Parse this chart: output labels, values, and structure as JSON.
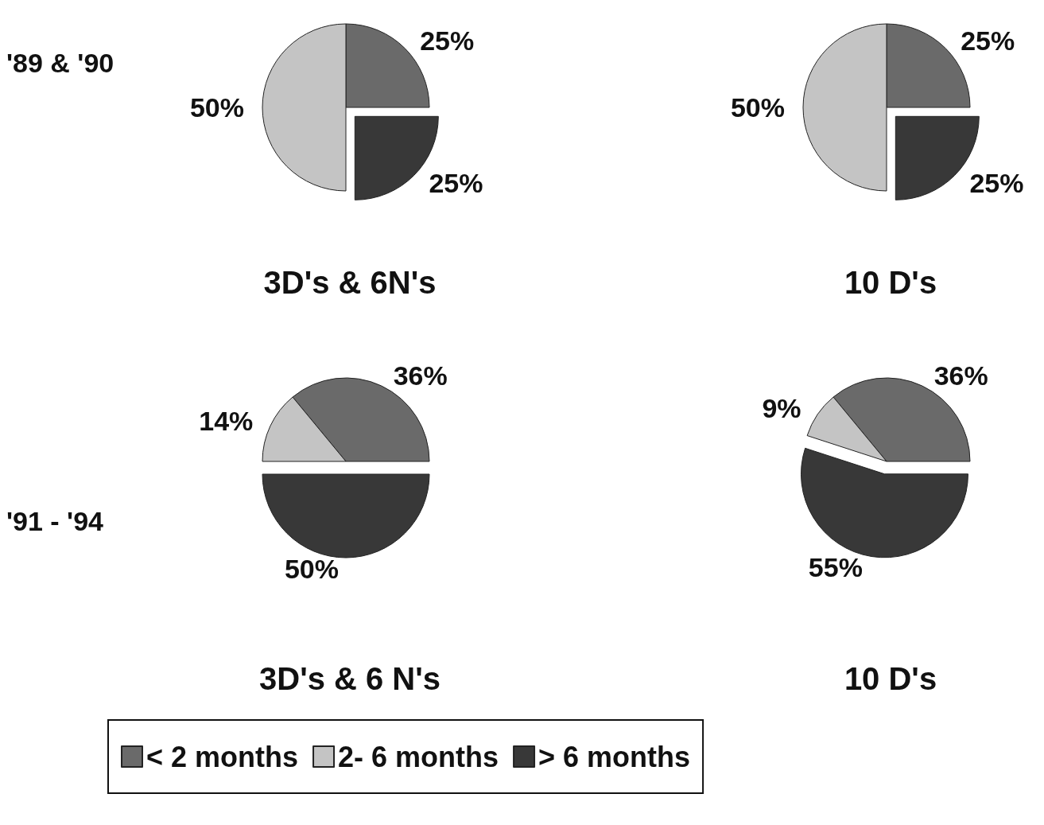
{
  "chart_data": [
    {
      "type": "pie",
      "title": "3D's & 6N's",
      "annotations": [
        "'89 & '90"
      ],
      "categories": [
        null,
        null,
        null
      ],
      "values": [
        25,
        50,
        25
      ],
      "value_labels": [
        "25%",
        "50%",
        "25%"
      ],
      "colors": [
        "#6a6a6a",
        "#c4c4c4",
        "#383838"
      ]
    },
    {
      "type": "pie",
      "title": "10 D's",
      "categories": [
        null,
        null,
        null
      ],
      "values": [
        25,
        50,
        25
      ],
      "value_labels": [
        "25%",
        "50%",
        "25%"
      ],
      "colors": [
        "#6a6a6a",
        "#c4c4c4",
        "#383838"
      ]
    },
    {
      "type": "pie",
      "title": "3D's & 6 N's",
      "annotations": [
        "'91 - '94"
      ],
      "categories": [
        "< 2 months",
        "2- 6 months",
        "> 6 months"
      ],
      "values": [
        36,
        14,
        50
      ],
      "value_labels": [
        "36%",
        "14%",
        "50%"
      ],
      "colors": [
        "#6a6a6a",
        "#c4c4c4",
        "#383838"
      ],
      "legend": "bottom"
    },
    {
      "type": "pie",
      "title": "10 D's",
      "categories": [
        null,
        null,
        null
      ],
      "values": [
        36,
        9,
        55
      ],
      "value_labels": [
        "36%",
        "9%",
        "55%"
      ],
      "colors": [
        "#6a6a6a",
        "#c4c4c4",
        "#383838"
      ]
    }
  ]
}
